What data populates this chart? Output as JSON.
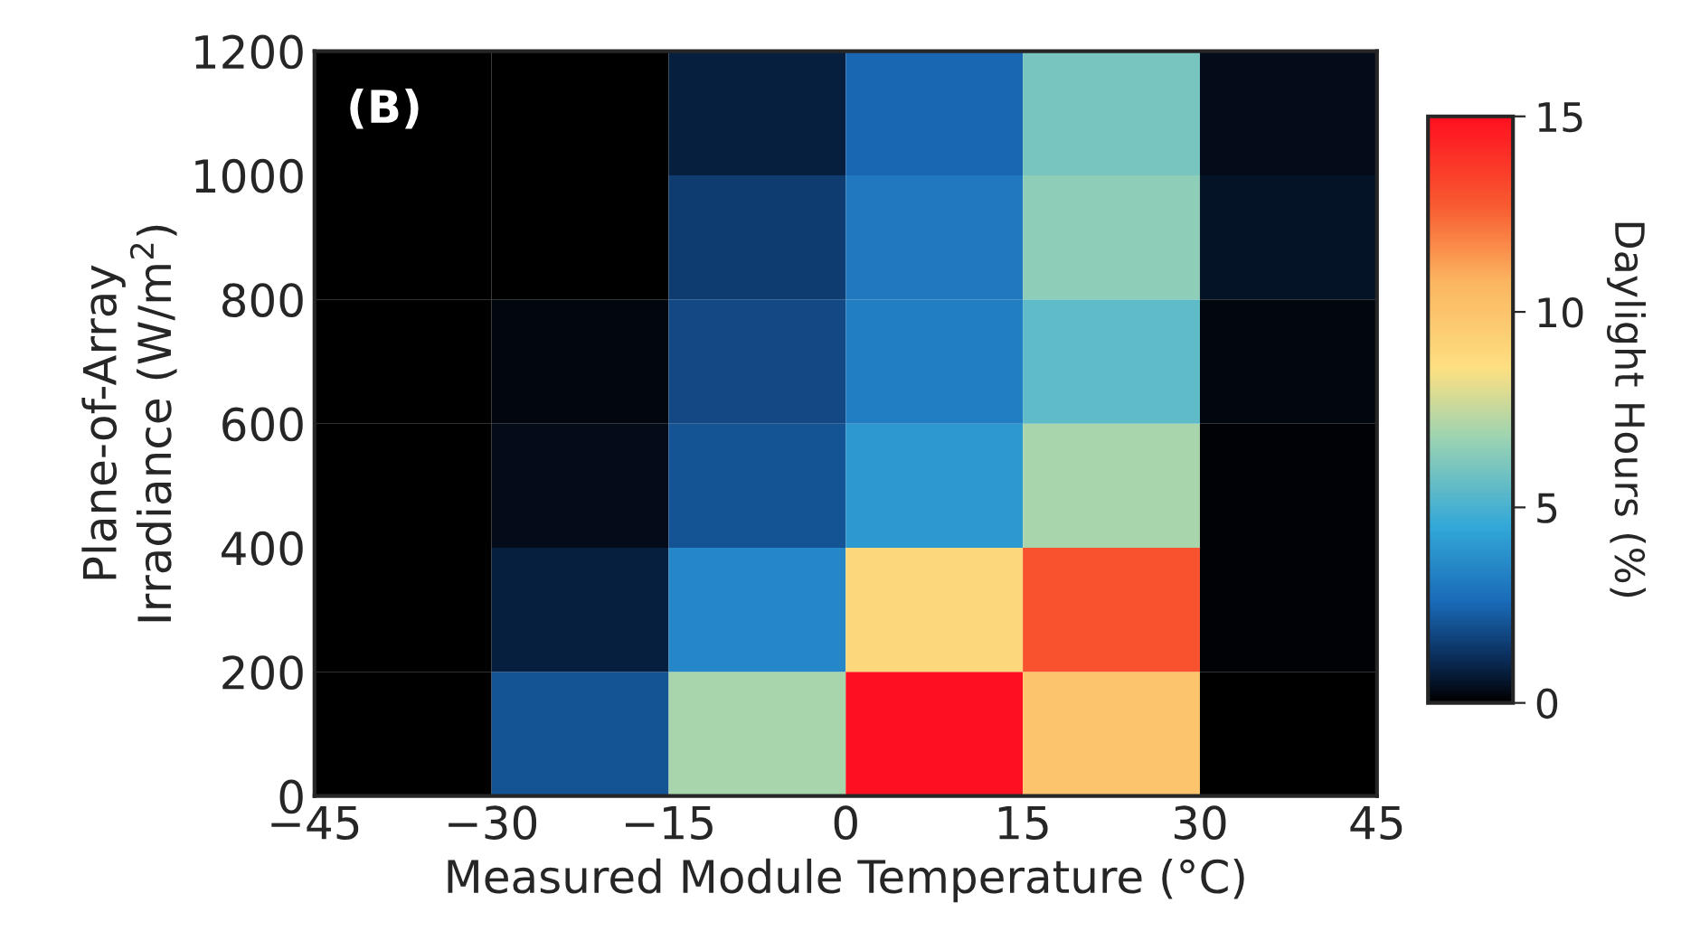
{
  "chart_data": {
    "type": "heatmap",
    "xlabel": "Measured Module Temperature (°C)",
    "ylabel": "Plane-of-Array\nIrradiance (W/m$^{2}$)",
    "clabel": "Daylight Hours (%)",
    "annotations": [
      "(B)"
    ],
    "xlim": [
      -45,
      45
    ],
    "xticks": [
      {
        "value": -45,
        "label": "−45"
      },
      {
        "value": -30,
        "label": "−30"
      },
      {
        "value": -15,
        "label": "−15"
      },
      0,
      15,
      30,
      45
    ],
    "ylim": [
      0,
      1200
    ],
    "yticks": [
      0,
      200,
      400,
      600,
      800,
      1000,
      1200
    ],
    "cells": [
      [
        0,
        0,
        0.8,
        2.5,
        6,
        0.3
      ],
      [
        0,
        0,
        1.5,
        3,
        6.5,
        0.5
      ],
      [
        0,
        0.2,
        1.8,
        3.2,
        5.5,
        0.2
      ],
      [
        0,
        0.3,
        2,
        4,
        7,
        0.1
      ],
      [
        0,
        0.8,
        3.5,
        9,
        13,
        0.1
      ],
      [
        0,
        2,
        7,
        15,
        10,
        0
      ]
    ],
    "clim": [
      0,
      15
    ],
    "cticks": [
      0,
      5,
      10,
      15
    ]
  }
}
